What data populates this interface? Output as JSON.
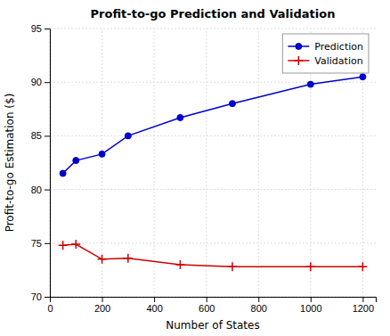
{
  "chart_data": {
    "type": "line",
    "title": "Profit-to-go Prediction and Validation",
    "xlabel": "Number of States",
    "ylabel": "Profit-to-go Estimation ($)",
    "x": [
      50,
      100,
      200,
      300,
      500,
      700,
      1000,
      1200
    ],
    "series": [
      {
        "name": "Prediction",
        "color": "#0000cc",
        "marker": "circle",
        "values": [
          81.5,
          82.7,
          83.3,
          85.0,
          86.7,
          88.0,
          89.8,
          90.5
        ]
      },
      {
        "name": "Validation",
        "color": "#cc0000",
        "marker": "plus",
        "values": [
          74.8,
          74.9,
          73.5,
          73.6,
          73.0,
          72.8,
          72.8,
          72.8
        ]
      }
    ],
    "xlim": [
      0,
      1250
    ],
    "ylim": [
      70,
      95
    ],
    "xticks": [
      0,
      200,
      400,
      600,
      800,
      1000,
      1200
    ],
    "yticks": [
      70,
      75,
      80,
      85,
      90,
      95
    ],
    "grid": true,
    "legend": "upper right"
  }
}
